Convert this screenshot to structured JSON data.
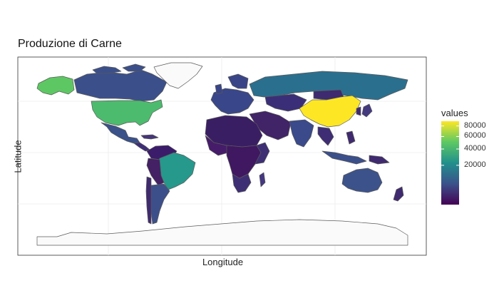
{
  "title": "Produzione di Carne",
  "axes": {
    "x_label": "Longitude",
    "y_label": "Latitude"
  },
  "legend": {
    "title": "values",
    "ticks": [
      {
        "label": "80000",
        "value": 80000
      },
      {
        "label": "60000",
        "value": 60000
      },
      {
        "label": "40000",
        "value": 40000
      },
      {
        "label": "20000",
        "value": 20000
      }
    ],
    "range": [
      0,
      90000
    ],
    "scale": "sqrt"
  },
  "palette": {
    "low": "#440154",
    "mid_low": "#3b528b",
    "mid": "#21908c",
    "mid_high": "#5dc863",
    "high": "#fde725",
    "no_data": "#fafafa",
    "border": "#5a5a5a",
    "grid": "#ececec"
  },
  "chart_data": {
    "type": "choropleth",
    "title": "Produzione di Carne",
    "xlabel": "Longitude",
    "ylabel": "Latitude",
    "legend_title": "values",
    "legend_placement": "right",
    "grid": true,
    "regions": [
      {
        "name": "China",
        "value": 88000
      },
      {
        "name": "United States",
        "value": 46000
      },
      {
        "name": "Brazil",
        "value": 28000
      },
      {
        "name": "Russia",
        "value": 10000
      },
      {
        "name": "Greenland",
        "value": null
      },
      {
        "name": "Canada",
        "value": 4000
      },
      {
        "name": "Mexico",
        "value": 6500
      },
      {
        "name": "India",
        "value": 7000
      },
      {
        "name": "Australia",
        "value": 4500
      },
      {
        "name": "Argentina",
        "value": 5500
      },
      {
        "name": "Alaska",
        "value": 46000
      },
      {
        "name": "Antarctica",
        "value": null
      },
      {
        "name": "Kazakhstan",
        "value": 1000
      },
      {
        "name": "Africa",
        "value": 500
      },
      {
        "name": "Europe",
        "value": 3000
      }
    ]
  }
}
